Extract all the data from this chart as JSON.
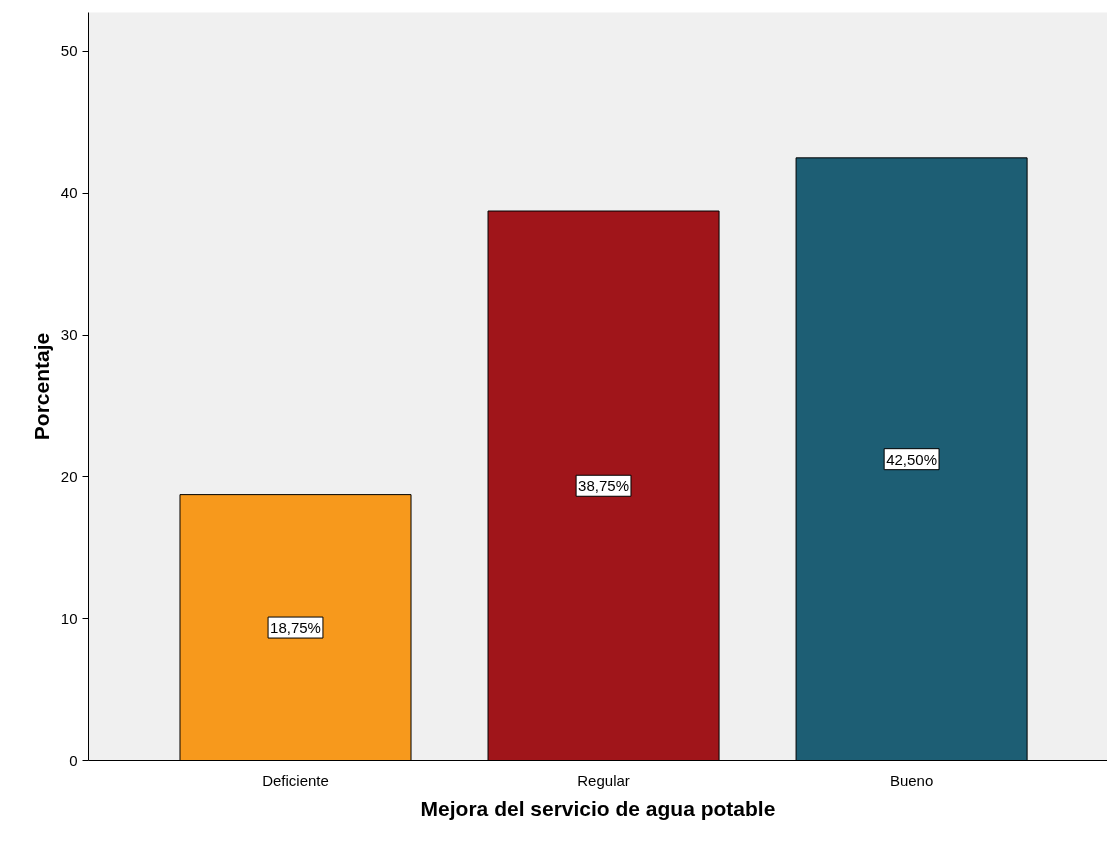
{
  "chart_data": {
    "type": "bar",
    "xlabel": "Mejora del servicio de agua potable",
    "ylabel": "Porcentaje",
    "categories": [
      "Deficiente",
      "Regular",
      "Bueno"
    ],
    "values": [
      18.75,
      38.75,
      42.5
    ],
    "colors": [
      "#f7991c",
      "#a0151a",
      "#1d5e74"
    ],
    "value_labels": [
      "18,75%",
      "38,75%",
      "42,50%"
    ],
    "ylim": [
      0,
      52.75
    ],
    "yticks": [
      0,
      10,
      20,
      30,
      40,
      50
    ],
    "grid": false
  }
}
